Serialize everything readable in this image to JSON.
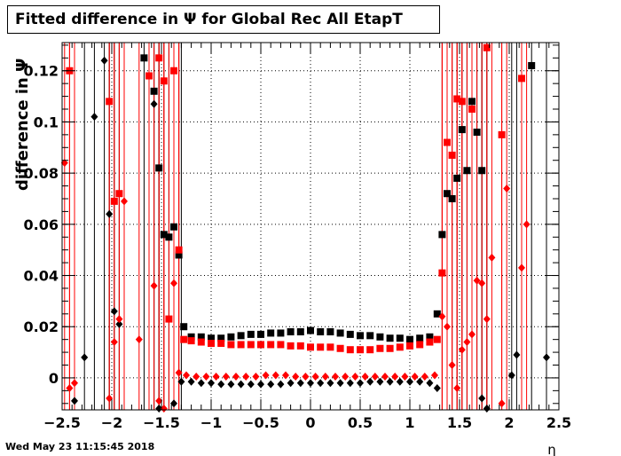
{
  "title": "Fitted difference in  Ψ  for Global Rec All EtapT",
  "timestamp": "Wed May 23 11:15:45 2018",
  "chart_data": {
    "type": "scatter",
    "xlabel": "η",
    "ylabel": "difference in Ψ",
    "xlim": [
      -2.5,
      2.5
    ],
    "ylim": [
      -0.0125,
      0.131
    ],
    "grid": true,
    "x_ticks": [
      -2.5,
      -2,
      -1.5,
      -1,
      -0.5,
      0,
      0.5,
      1,
      1.5,
      2,
      2.5
    ],
    "x_tick_labels": [
      "−2.5",
      "−2",
      "−1.5",
      "−1",
      "−0.5",
      "0",
      "0.5",
      "1",
      "1.5",
      "2",
      "2.5"
    ],
    "y_ticks": [
      0,
      0.02,
      0.04,
      0.06,
      0.08,
      0.1,
      0.12
    ],
    "y_tick_labels": [
      "0",
      "0.02",
      "0.04",
      "0.06",
      "0.08",
      "0.1",
      "0.12"
    ],
    "series": [
      {
        "color": "#000000",
        "marker": "square",
        "points": [
          [
            -1.675,
            0.125
          ],
          [
            -1.575,
            0.112
          ],
          [
            -1.525,
            0.082
          ],
          [
            -1.475,
            0.056
          ],
          [
            -1.425,
            0.055
          ],
          [
            -1.375,
            0.059
          ],
          [
            -1.325,
            0.048
          ],
          [
            -1.275,
            0.02
          ],
          [
            -1.2,
            0.016
          ],
          [
            -1.1,
            0.016
          ],
          [
            -1.0,
            0.0155
          ],
          [
            -0.9,
            0.0155
          ],
          [
            -0.8,
            0.016
          ],
          [
            -0.7,
            0.0165
          ],
          [
            -0.6,
            0.017
          ],
          [
            -0.5,
            0.017
          ],
          [
            -0.4,
            0.0175
          ],
          [
            -0.3,
            0.0175
          ],
          [
            -0.2,
            0.018
          ],
          [
            -0.1,
            0.018
          ],
          [
            0.0,
            0.0185
          ],
          [
            0.1,
            0.018
          ],
          [
            0.2,
            0.018
          ],
          [
            0.3,
            0.0175
          ],
          [
            0.4,
            0.017
          ],
          [
            0.5,
            0.0165
          ],
          [
            0.6,
            0.0165
          ],
          [
            0.7,
            0.016
          ],
          [
            0.8,
            0.0155
          ],
          [
            0.9,
            0.0155
          ],
          [
            1.0,
            0.015
          ],
          [
            1.1,
            0.0155
          ],
          [
            1.2,
            0.016
          ],
          [
            1.275,
            0.025
          ],
          [
            1.325,
            0.056
          ],
          [
            1.375,
            0.072
          ],
          [
            1.425,
            0.07
          ],
          [
            1.475,
            0.078
          ],
          [
            1.525,
            0.097
          ],
          [
            1.575,
            0.081
          ],
          [
            1.625,
            0.108
          ],
          [
            1.675,
            0.096
          ],
          [
            1.725,
            0.081
          ],
          [
            2.225,
            0.122
          ]
        ]
      },
      {
        "color": "#ff0000",
        "marker": "square",
        "points": [
          [
            -2.425,
            0.12
          ],
          [
            -2.025,
            0.108
          ],
          [
            -1.975,
            0.069
          ],
          [
            -1.925,
            0.072
          ],
          [
            -1.625,
            0.118
          ],
          [
            -1.525,
            0.125
          ],
          [
            -1.475,
            0.116
          ],
          [
            -1.425,
            0.023
          ],
          [
            -1.375,
            0.12
          ],
          [
            -1.325,
            0.05
          ],
          [
            -1.275,
            0.015
          ],
          [
            -1.2,
            0.0145
          ],
          [
            -1.1,
            0.014
          ],
          [
            -1.0,
            0.0135
          ],
          [
            -0.9,
            0.0135
          ],
          [
            -0.8,
            0.013
          ],
          [
            -0.7,
            0.013
          ],
          [
            -0.6,
            0.013
          ],
          [
            -0.5,
            0.013
          ],
          [
            -0.4,
            0.013
          ],
          [
            -0.3,
            0.013
          ],
          [
            -0.2,
            0.0125
          ],
          [
            -0.1,
            0.0125
          ],
          [
            0.0,
            0.012
          ],
          [
            0.1,
            0.012
          ],
          [
            0.2,
            0.012
          ],
          [
            0.3,
            0.0115
          ],
          [
            0.4,
            0.011
          ],
          [
            0.5,
            0.011
          ],
          [
            0.6,
            0.011
          ],
          [
            0.7,
            0.0115
          ],
          [
            0.8,
            0.0115
          ],
          [
            0.9,
            0.012
          ],
          [
            1.0,
            0.0125
          ],
          [
            1.1,
            0.013
          ],
          [
            1.2,
            0.014
          ],
          [
            1.275,
            0.015
          ],
          [
            1.325,
            0.041
          ],
          [
            1.375,
            0.092
          ],
          [
            1.425,
            0.087
          ],
          [
            1.475,
            0.109
          ],
          [
            1.525,
            0.108
          ],
          [
            1.625,
            0.105
          ],
          [
            1.775,
            0.129
          ],
          [
            1.925,
            0.095
          ],
          [
            2.125,
            0.117
          ]
        ]
      },
      {
        "color": "#000000",
        "marker": "diamond",
        "points": [
          [
            -2.375,
            -0.009
          ],
          [
            -2.275,
            0.008
          ],
          [
            -2.175,
            0.102
          ],
          [
            -2.075,
            0.124
          ],
          [
            -2.025,
            0.064
          ],
          [
            -1.975,
            0.026
          ],
          [
            -1.925,
            0.021
          ],
          [
            -1.575,
            0.107
          ],
          [
            -1.525,
            -0.012
          ],
          [
            -1.375,
            -0.01
          ],
          [
            -1.3,
            -0.0015
          ],
          [
            -1.2,
            -0.0015
          ],
          [
            -1.1,
            -0.002
          ],
          [
            -1.0,
            -0.002
          ],
          [
            -0.9,
            -0.0025
          ],
          [
            -0.8,
            -0.0025
          ],
          [
            -0.7,
            -0.0025
          ],
          [
            -0.6,
            -0.0025
          ],
          [
            -0.5,
            -0.0025
          ],
          [
            -0.4,
            -0.0025
          ],
          [
            -0.3,
            -0.0025
          ],
          [
            -0.2,
            -0.002
          ],
          [
            -0.1,
            -0.002
          ],
          [
            0.0,
            -0.002
          ],
          [
            0.1,
            -0.002
          ],
          [
            0.2,
            -0.002
          ],
          [
            0.3,
            -0.002
          ],
          [
            0.4,
            -0.002
          ],
          [
            0.5,
            -0.002
          ],
          [
            0.6,
            -0.0015
          ],
          [
            0.7,
            -0.0015
          ],
          [
            0.8,
            -0.0015
          ],
          [
            0.9,
            -0.0015
          ],
          [
            1.0,
            -0.0015
          ],
          [
            1.1,
            -0.0015
          ],
          [
            1.2,
            -0.002
          ],
          [
            1.275,
            -0.004
          ],
          [
            1.725,
            -0.008
          ],
          [
            1.775,
            -0.012
          ],
          [
            2.025,
            0.001
          ],
          [
            2.075,
            0.009
          ],
          [
            2.375,
            0.008
          ]
        ]
      },
      {
        "color": "#ff0000",
        "marker": "diamond",
        "points": [
          [
            -2.475,
            0.084
          ],
          [
            -2.425,
            -0.004
          ],
          [
            -2.375,
            -0.002
          ],
          [
            -2.025,
            -0.008
          ],
          [
            -1.975,
            0.014
          ],
          [
            -1.925,
            0.023
          ],
          [
            -1.875,
            0.069
          ],
          [
            -1.725,
            0.015
          ],
          [
            -1.575,
            0.036
          ],
          [
            -1.525,
            -0.009
          ],
          [
            -1.475,
            -0.012
          ],
          [
            -1.375,
            0.037
          ],
          [
            -1.325,
            0.002
          ],
          [
            -1.25,
            0.001
          ],
          [
            -1.15,
            0.0005
          ],
          [
            -1.05,
            0.0005
          ],
          [
            -0.95,
            0.0005
          ],
          [
            -0.85,
            0.0005
          ],
          [
            -0.75,
            0.0005
          ],
          [
            -0.65,
            0.0005
          ],
          [
            -0.55,
            0.0005
          ],
          [
            -0.45,
            0.001
          ],
          [
            -0.35,
            0.001
          ],
          [
            -0.25,
            0.001
          ],
          [
            -0.15,
            0.0005
          ],
          [
            -0.05,
            0.0005
          ],
          [
            0.05,
            0.0005
          ],
          [
            0.15,
            0.0005
          ],
          [
            0.25,
            0.0005
          ],
          [
            0.35,
            0.0005
          ],
          [
            0.45,
            0.0005
          ],
          [
            0.55,
            0.0005
          ],
          [
            0.65,
            0.0005
          ],
          [
            0.75,
            0.0005
          ],
          [
            0.85,
            0.0005
          ],
          [
            0.95,
            0.0005
          ],
          [
            1.05,
            0.0005
          ],
          [
            1.15,
            0.0005
          ],
          [
            1.25,
            0.001
          ],
          [
            1.325,
            0.024
          ],
          [
            1.375,
            0.02
          ],
          [
            1.425,
            0.005
          ],
          [
            1.475,
            -0.004
          ],
          [
            1.525,
            0.011
          ],
          [
            1.575,
            0.014
          ],
          [
            1.625,
            0.017
          ],
          [
            1.675,
            0.038
          ],
          [
            1.725,
            0.037
          ],
          [
            1.775,
            0.023
          ],
          [
            1.825,
            0.047
          ],
          [
            1.925,
            -0.01
          ],
          [
            1.975,
            0.074
          ],
          [
            2.125,
            0.043
          ],
          [
            2.175,
            0.06
          ]
        ]
      }
    ]
  }
}
